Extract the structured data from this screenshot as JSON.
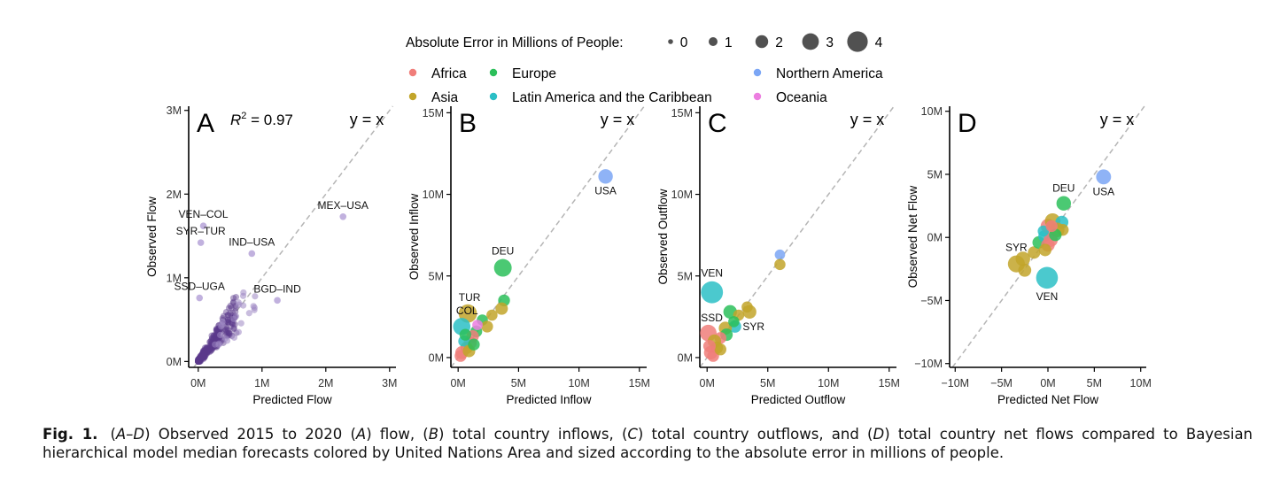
{
  "legend": {
    "size_title": "Absolute Error in Millions of People:",
    "size_levels": [
      "0",
      "1",
      "2",
      "3",
      "4"
    ],
    "areas": [
      {
        "name": "Africa",
        "color": "#F07E7A"
      },
      {
        "name": "Asia",
        "color": "#C2A52A"
      },
      {
        "name": "Europe",
        "color": "#2CBF5A"
      },
      {
        "name": "Latin America and the Caribbean",
        "color": "#2BBFC6"
      },
      {
        "name": "Northern America",
        "color": "#7BA6F5"
      },
      {
        "name": "Oceania",
        "color": "#EC7EE0"
      }
    ]
  },
  "chart_data": [
    {
      "type": "scatter",
      "panel": "A",
      "annotation_r2": "R² = 0.97",
      "annotation_line": "y = x",
      "xlabel": "Predicted Flow",
      "ylabel": "Observed Flow",
      "xlim": [
        -0.15,
        3.1
      ],
      "ylim": [
        -0.07,
        3.05
      ],
      "xticks": [
        {
          "v": 0,
          "label": "0M"
        },
        {
          "v": 1,
          "label": "1M"
        },
        {
          "v": 2,
          "label": "2M"
        },
        {
          "v": 3,
          "label": "3M"
        }
      ],
      "yticks": [
        {
          "v": 0,
          "label": "0M"
        },
        {
          "v": 1,
          "label": "1M"
        },
        {
          "v": 2,
          "label": "2M"
        },
        {
          "v": 3,
          "label": "3M"
        }
      ],
      "point_color": "#5B3A8C",
      "labeled_points": [
        {
          "label": "MEX–USA",
          "x": 2.27,
          "y": 1.73
        },
        {
          "label": "VEN–COL",
          "x": 0.08,
          "y": 1.62
        },
        {
          "label": "SYR–TUR",
          "x": 0.04,
          "y": 1.42
        },
        {
          "label": "IND–USA",
          "x": 0.84,
          "y": 1.29
        },
        {
          "label": "SSD–UGA",
          "x": 0.02,
          "y": 0.76
        },
        {
          "label": "BGD–IND",
          "x": 1.24,
          "y": 0.73
        }
      ],
      "point_label_text": [
        "MEX–USA",
        "VEN–COL",
        "SYR–TUR",
        "IND–USA",
        "SSD–UGA",
        "BGD–IND"
      ]
    },
    {
      "type": "scatter",
      "panel": "B",
      "annotation_line": "y = x",
      "xlabel": "Predicted Inflow",
      "ylabel": "Observed Inflow",
      "xlim": [
        -0.6,
        15.6
      ],
      "ylim": [
        -0.6,
        15.4
      ],
      "xticks": [
        {
          "v": 0,
          "label": "0M"
        },
        {
          "v": 5,
          "label": "5M"
        },
        {
          "v": 10,
          "label": "10M"
        },
        {
          "v": 15,
          "label": "15M"
        }
      ],
      "yticks": [
        {
          "v": 0,
          "label": "0M"
        },
        {
          "v": 5,
          "label": "5M"
        },
        {
          "v": 10,
          "label": "10M"
        },
        {
          "v": 15,
          "label": "15M"
        }
      ],
      "labels": {
        "USA": "USA",
        "DEU": "DEU",
        "TUR": "TUR",
        "COL": "COL"
      },
      "points": [
        {
          "x": 12.2,
          "y": 11.1,
          "area": 4,
          "err": 1.0,
          "label": "USA"
        },
        {
          "x": 3.7,
          "y": 5.5,
          "area": 2,
          "err": 1.8,
          "label": "DEU"
        },
        {
          "x": 0.8,
          "y": 2.7,
          "area": 1,
          "err": 2.0,
          "label": "TUR"
        },
        {
          "x": 0.3,
          "y": 1.9,
          "area": 3,
          "err": 1.7,
          "label": "COL"
        },
        {
          "x": 3.8,
          "y": 3.5,
          "area": 2,
          "err": 0.5
        },
        {
          "x": 3.6,
          "y": 3.0,
          "area": 1,
          "err": 0.6
        },
        {
          "x": 2.8,
          "y": 2.6,
          "area": 1,
          "err": 0.4
        },
        {
          "x": 2.0,
          "y": 2.3,
          "area": 2,
          "err": 0.4
        },
        {
          "x": 2.4,
          "y": 1.9,
          "area": 1,
          "err": 0.5
        },
        {
          "x": 1.5,
          "y": 1.6,
          "area": 2,
          "err": 0.5
        },
        {
          "x": 1.2,
          "y": 1.3,
          "area": 0,
          "err": 0.6
        },
        {
          "x": 1.6,
          "y": 2.0,
          "area": 5,
          "err": 0.3
        },
        {
          "x": 1.0,
          "y": 0.9,
          "area": 0,
          "err": 0.7
        },
        {
          "x": 0.7,
          "y": 0.6,
          "area": 1,
          "err": 0.6
        },
        {
          "x": 0.5,
          "y": 1.0,
          "area": 3,
          "err": 0.5
        },
        {
          "x": 0.3,
          "y": 0.3,
          "area": 0,
          "err": 0.7
        },
        {
          "x": 0.2,
          "y": 0.1,
          "area": 0,
          "err": 0.5
        },
        {
          "x": 0.9,
          "y": 0.4,
          "area": 1,
          "err": 0.6
        },
        {
          "x": 1.3,
          "y": 0.8,
          "area": 2,
          "err": 0.5
        },
        {
          "x": 0.6,
          "y": 1.4,
          "area": 2,
          "err": 0.5
        }
      ]
    },
    {
      "type": "scatter",
      "panel": "C",
      "annotation_line": "y = x",
      "xlabel": "Predicted Outflow",
      "ylabel": "Observed Outflow",
      "xlim": [
        -0.6,
        15.6
      ],
      "ylim": [
        -0.6,
        15.4
      ],
      "xticks": [
        {
          "v": 0,
          "label": "0M"
        },
        {
          "v": 5,
          "label": "5M"
        },
        {
          "v": 10,
          "label": "10M"
        },
        {
          "v": 15,
          "label": "15M"
        }
      ],
      "yticks": [
        {
          "v": 0,
          "label": "0M"
        },
        {
          "v": 5,
          "label": "5M"
        },
        {
          "v": 10,
          "label": "10M"
        },
        {
          "v": 15,
          "label": "15M"
        }
      ],
      "labels": {
        "VEN": "VEN",
        "SSD": "SSD",
        "SYR": "SYR"
      },
      "points": [
        {
          "x": 0.4,
          "y": 4.0,
          "area": 3,
          "err": 3.3,
          "label": "VEN"
        },
        {
          "x": 0.1,
          "y": 1.5,
          "area": 0,
          "err": 1.5,
          "label": "SSD"
        },
        {
          "x": 2.3,
          "y": 1.9,
          "area": 3,
          "err": 0.6,
          "label": "SYR"
        },
        {
          "x": 6.0,
          "y": 6.3,
          "area": 4,
          "err": 0.3
        },
        {
          "x": 6.0,
          "y": 5.7,
          "area": 1,
          "err": 0.4
        },
        {
          "x": 3.5,
          "y": 2.8,
          "area": 1,
          "err": 0.8
        },
        {
          "x": 3.3,
          "y": 3.1,
          "area": 1,
          "err": 0.4
        },
        {
          "x": 1.9,
          "y": 2.8,
          "area": 2,
          "err": 0.8
        },
        {
          "x": 2.6,
          "y": 2.6,
          "area": 1,
          "err": 0.4
        },
        {
          "x": 1.5,
          "y": 1.8,
          "area": 1,
          "err": 0.7
        },
        {
          "x": 1.6,
          "y": 1.4,
          "area": 2,
          "err": 0.6
        },
        {
          "x": 1.1,
          "y": 1.2,
          "area": 0,
          "err": 0.5
        },
        {
          "x": 0.6,
          "y": 1.0,
          "area": 1,
          "err": 0.8
        },
        {
          "x": 0.8,
          "y": 0.6,
          "area": 1,
          "err": 0.6
        },
        {
          "x": 0.3,
          "y": 0.3,
          "area": 0,
          "err": 0.8
        },
        {
          "x": 0.5,
          "y": 0.1,
          "area": 0,
          "err": 0.5
        },
        {
          "x": 1.1,
          "y": 0.5,
          "area": 1,
          "err": 0.5
        },
        {
          "x": 0.2,
          "y": 0.7,
          "area": 0,
          "err": 0.6
        },
        {
          "x": 2.2,
          "y": 2.2,
          "area": 2,
          "err": 0.4
        }
      ]
    },
    {
      "type": "scatter",
      "panel": "D",
      "annotation_line": "y = x",
      "xlabel": "Predicted Net Flow",
      "ylabel": "Observed Net Flow",
      "xlim": [
        -10.6,
        10.6
      ],
      "ylim": [
        -10.3,
        10.4
      ],
      "xticks": [
        {
          "v": -10,
          "label": "−10M"
        },
        {
          "v": -5,
          "label": "−5M"
        },
        {
          "v": 0,
          "label": "0M"
        },
        {
          "v": 5,
          "label": "5M"
        },
        {
          "v": 10,
          "label": "10M"
        }
      ],
      "yticks": [
        {
          "v": -10,
          "label": "−10M"
        },
        {
          "v": -5,
          "label": "−5M"
        },
        {
          "v": 0,
          "label": "0M"
        },
        {
          "v": 5,
          "label": "5M"
        },
        {
          "v": 10,
          "label": "10M"
        }
      ],
      "labels": {
        "USA": "USA",
        "DEU": "DEU",
        "SYR": "SYR",
        "VEN": "VEN"
      },
      "points": [
        {
          "x": 6.0,
          "y": 4.8,
          "area": 4,
          "err": 1.1,
          "label": "USA"
        },
        {
          "x": 1.7,
          "y": 2.7,
          "area": 2,
          "err": 1.0,
          "label": "DEU"
        },
        {
          "x": -3.4,
          "y": -2.1,
          "area": 1,
          "err": 1.6,
          "label": "SYR"
        },
        {
          "x": -0.1,
          "y": -3.2,
          "area": 3,
          "err": 3.2,
          "label": "VEN"
        },
        {
          "x": -2.7,
          "y": -1.7,
          "area": 1,
          "err": 1.0
        },
        {
          "x": -2.5,
          "y": -2.6,
          "area": 1,
          "err": 0.7
        },
        {
          "x": -1.5,
          "y": -1.2,
          "area": 1,
          "err": 0.6
        },
        {
          "x": -1.0,
          "y": -0.4,
          "area": 2,
          "err": 0.6
        },
        {
          "x": -0.4,
          "y": 0.1,
          "area": 3,
          "err": 0.5
        },
        {
          "x": 0.0,
          "y": 0.9,
          "area": 0,
          "err": 1.0
        },
        {
          "x": 0.5,
          "y": 1.3,
          "area": 1,
          "err": 1.2
        },
        {
          "x": 1.5,
          "y": 1.2,
          "area": 3,
          "err": 0.7
        },
        {
          "x": 1.0,
          "y": 0.6,
          "area": 1,
          "err": 1.0
        },
        {
          "x": 0.3,
          "y": -0.2,
          "area": 0,
          "err": 0.9
        },
        {
          "x": 0.0,
          "y": -0.6,
          "area": 0,
          "err": 0.8
        },
        {
          "x": -0.3,
          "y": -1.0,
          "area": 1,
          "err": 0.6
        },
        {
          "x": 1.6,
          "y": 0.6,
          "area": 1,
          "err": 0.5
        },
        {
          "x": 0.8,
          "y": 0.2,
          "area": 2,
          "err": 0.6
        },
        {
          "x": -0.5,
          "y": 0.5,
          "area": 3,
          "err": 0.4
        },
        {
          "x": 0.4,
          "y": 0.9,
          "area": 0,
          "err": 0.5
        }
      ]
    }
  ],
  "caption": {
    "label": "Fig. 1.",
    "parts": [
      {
        "t": "(",
        "i": false
      },
      {
        "t": "A–D",
        "i": true
      },
      {
        "t": ") Observed 2015 to 2020 (",
        "i": false
      },
      {
        "t": "A",
        "i": true
      },
      {
        "t": ") flow, (",
        "i": false
      },
      {
        "t": "B",
        "i": true
      },
      {
        "t": ") total country inflows, (",
        "i": false
      },
      {
        "t": "C",
        "i": true
      },
      {
        "t": ") total country outflows, and (",
        "i": false
      },
      {
        "t": "D",
        "i": true
      },
      {
        "t": ") total country net flows compared to Bayesian hierarchical model median forecasts colored by United Nations Area and sized according to the absolute error in millions of people.",
        "i": false
      }
    ]
  }
}
